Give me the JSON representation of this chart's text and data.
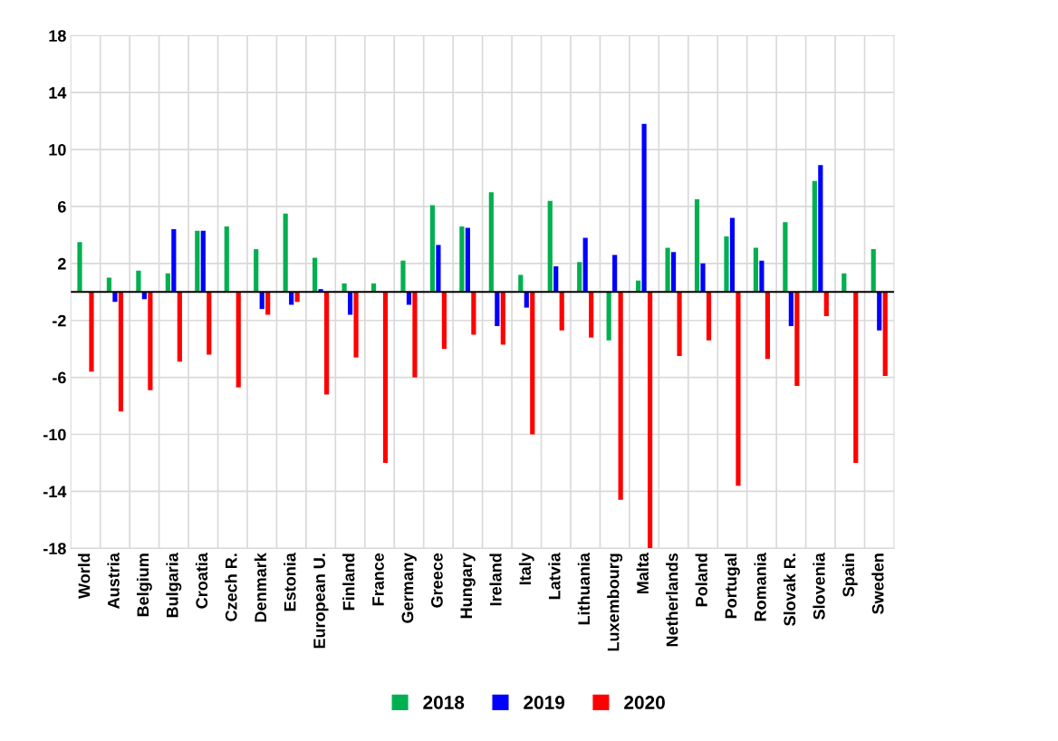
{
  "chart_data": {
    "type": "bar",
    "categories": [
      "World",
      "Austria",
      "Belgium",
      "Bulgaria",
      "Croatia",
      "Czech R.",
      "Denmark",
      "Estonia",
      "European U.",
      "Finland",
      "France",
      "Germany",
      "Greece",
      "Hungary",
      "Ireland",
      "Italy",
      "Latvia",
      "Lithuania",
      "Luxembourg",
      "Malta",
      "Netherlands",
      "Poland",
      "Portugal",
      "Romania",
      "Slovak R.",
      "Slovenia",
      "Spain",
      "Sweden"
    ],
    "series": [
      {
        "name": "2018",
        "color": "#00b050",
        "values": [
          3.5,
          1.0,
          1.5,
          1.3,
          4.3,
          4.6,
          3.0,
          5.5,
          2.4,
          0.6,
          0.6,
          2.2,
          6.1,
          4.6,
          7.0,
          1.2,
          6.4,
          2.1,
          -3.4,
          0.8,
          3.1,
          6.5,
          3.9,
          3.1,
          4.9,
          7.8,
          1.3,
          3.0
        ]
      },
      {
        "name": "2019",
        "color": "#0000ff",
        "values": [
          null,
          -0.7,
          -0.5,
          4.4,
          4.3,
          null,
          -1.2,
          -0.9,
          0.2,
          -1.6,
          0.0,
          -0.9,
          3.3,
          4.5,
          -2.4,
          -1.1,
          1.8,
          3.8,
          2.6,
          11.8,
          2.8,
          2.0,
          5.2,
          2.2,
          -2.4,
          8.9,
          0.0,
          -2.7
        ]
      },
      {
        "name": "2020",
        "color": "#ff0000",
        "values": [
          -5.6,
          -8.4,
          -6.9,
          -4.9,
          -4.4,
          -6.7,
          -1.6,
          -0.7,
          -7.2,
          -4.6,
          -12.0,
          -6.0,
          -4.0,
          -3.0,
          -3.7,
          -10.0,
          -2.7,
          -3.2,
          -14.6,
          -18.0,
          -4.5,
          -3.4,
          -13.6,
          -4.7,
          -6.6,
          -1.7,
          -12.0,
          -5.9
        ]
      }
    ],
    "ylim": [
      -18,
      18
    ],
    "yticks": [
      -18,
      -14,
      -10,
      -6,
      -2,
      2,
      6,
      10,
      14,
      18
    ],
    "grid": true,
    "legend": "bottom"
  }
}
